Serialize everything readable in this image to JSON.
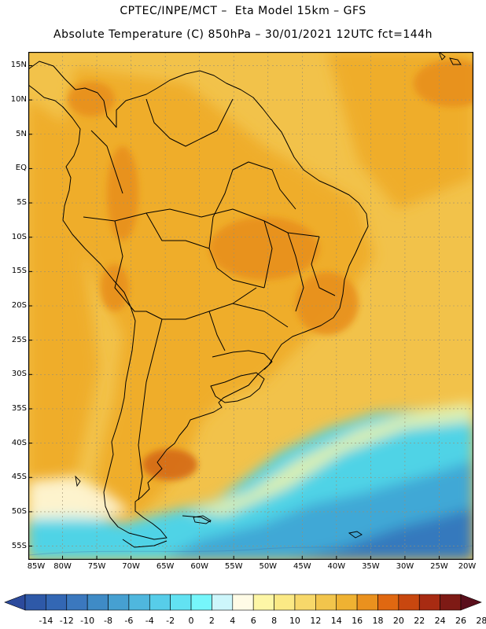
{
  "title": {
    "line1": "CPTEC/INPE/MCT –  Eta Model 15km – GFS",
    "line2": "Absolute Temperature (C) 850hPa – 30/01/2021 12UTC fct=144h"
  },
  "map": {
    "region": "South America",
    "lon_range": [
      -85,
      -20
    ],
    "lat_range": [
      -57,
      17
    ],
    "lat_labels": [
      "15N",
      "10N",
      "5N",
      "EQ",
      "5S",
      "10S",
      "15S",
      "20S",
      "25S",
      "30S",
      "35S",
      "40S",
      "45S",
      "50S",
      "55S"
    ],
    "lon_labels": [
      "85W",
      "80W",
      "75W",
      "70W",
      "65W",
      "60W",
      "55W",
      "50W",
      "45W",
      "40W",
      "35W",
      "30W",
      "25W",
      "20W"
    ],
    "grid": true,
    "colors": {
      "ocean_warm": "#f2c24a",
      "land_warm": "#efad2b",
      "hot": "#e8901a",
      "hottest": "#d56b12",
      "cool": "#4fd3e6",
      "cold": "#3fa8d6",
      "coldest": "#3679bd",
      "pale": "#fffbe4",
      "coast": "#000000"
    }
  },
  "colorbar": {
    "labels": [
      "-14",
      "-12",
      "-10",
      "-8",
      "-6",
      "-4",
      "-2",
      "0",
      "2",
      "4",
      "6",
      "8",
      "10",
      "12",
      "14",
      "16",
      "18",
      "20",
      "22",
      "24",
      "26",
      "28"
    ],
    "colors": [
      "#2c4a9c",
      "#2e59a8",
      "#3367b4",
      "#3b78be",
      "#3f8bc6",
      "#46a0d1",
      "#4fb7de",
      "#57cde9",
      "#62e2f2",
      "#76f6fb",
      "#cdf6fb",
      "#fffbe6",
      "#fdf6a6",
      "#fbe985",
      "#f7d86a",
      "#f2c54c",
      "#efb232",
      "#ea911e",
      "#e06811",
      "#c8470f",
      "#a82b12",
      "#7e1a15",
      "#5a0f1c"
    ]
  }
}
